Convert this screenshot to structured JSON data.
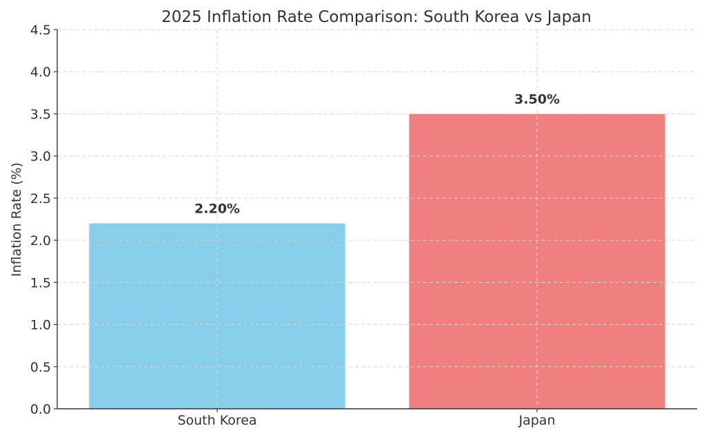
{
  "chart_data": {
    "type": "bar",
    "title": "2025 Inflation Rate Comparison: South Korea vs Japan",
    "xlabel": "",
    "ylabel": "Inflation Rate (%)",
    "categories": [
      "South Korea",
      "Japan"
    ],
    "values": [
      2.2,
      3.5
    ],
    "value_labels": [
      "2.20%",
      "3.50%"
    ],
    "colors": [
      "#87CEEB",
      "#F08080"
    ],
    "ylim": [
      0,
      4.5
    ],
    "yticks": [
      0.0,
      0.5,
      1.0,
      1.5,
      2.0,
      2.5,
      3.0,
      3.5,
      4.0,
      4.5
    ],
    "ytick_labels": [
      "0.0",
      "0.5",
      "1.0",
      "1.5",
      "2.0",
      "2.5",
      "3.0",
      "3.5",
      "4.0",
      "4.5"
    ],
    "grid": true
  }
}
